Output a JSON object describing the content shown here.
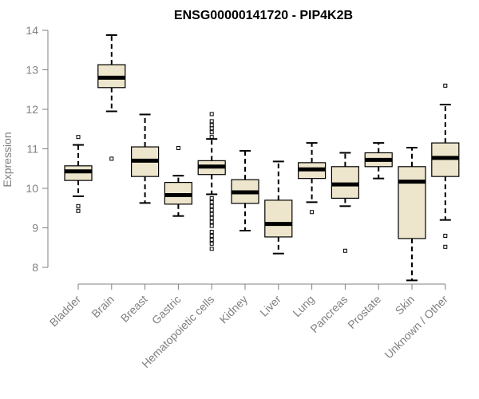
{
  "chart_data": {
    "type": "boxplot",
    "title": "ENSG00000141720 - PIP4K2B",
    "xlabel": "",
    "ylabel": "Expression",
    "ylim": [
      7.9,
      14.0
    ],
    "yticks": [
      8,
      9,
      10,
      11,
      12,
      13,
      14
    ],
    "grid": false,
    "box_fill": "#ede5cc",
    "categories": [
      "Bladder",
      "Brain",
      "Breast",
      "Gastric",
      "Hematopoietic cells",
      "Kidney",
      "Liver",
      "Lung",
      "Pancreas",
      "Prostate",
      "Skin",
      "Unknown / Other"
    ],
    "boxes": [
      {
        "q1": 10.2,
        "median": 10.43,
        "q3": 10.57,
        "whisker_low": 9.8,
        "whisker_high": 11.1,
        "outliers": [
          11.3,
          9.55,
          9.43
        ]
      },
      {
        "q1": 12.55,
        "median": 12.8,
        "q3": 13.13,
        "whisker_low": 11.95,
        "whisker_high": 13.88,
        "outliers": [
          10.75
        ]
      },
      {
        "q1": 10.3,
        "median": 10.7,
        "q3": 11.05,
        "whisker_low": 9.63,
        "whisker_high": 11.87,
        "outliers": []
      },
      {
        "q1": 9.6,
        "median": 9.83,
        "q3": 10.15,
        "whisker_low": 9.3,
        "whisker_high": 10.32,
        "outliers": [
          11.02
        ]
      },
      {
        "q1": 10.35,
        "median": 10.55,
        "q3": 10.7,
        "whisker_low": 9.85,
        "whisker_high": 11.25,
        "outliers": [
          11.3,
          11.42,
          11.52,
          11.6,
          11.7,
          11.88,
          9.75,
          9.65,
          9.55,
          9.45,
          9.35,
          9.25,
          9.15,
          9.05,
          8.9,
          8.8,
          8.7,
          8.6,
          8.47
        ]
      },
      {
        "q1": 9.62,
        "median": 9.9,
        "q3": 10.22,
        "whisker_low": 8.93,
        "whisker_high": 10.95,
        "outliers": []
      },
      {
        "q1": 8.77,
        "median": 9.1,
        "q3": 9.7,
        "whisker_low": 8.35,
        "whisker_high": 10.68,
        "outliers": []
      },
      {
        "q1": 10.25,
        "median": 10.48,
        "q3": 10.65,
        "whisker_low": 9.65,
        "whisker_high": 11.15,
        "outliers": [
          9.4
        ]
      },
      {
        "q1": 9.75,
        "median": 10.1,
        "q3": 10.55,
        "whisker_low": 9.55,
        "whisker_high": 10.9,
        "outliers": [
          8.42
        ]
      },
      {
        "q1": 10.55,
        "median": 10.72,
        "q3": 10.9,
        "whisker_low": 10.25,
        "whisker_high": 11.15,
        "outliers": []
      },
      {
        "q1": 8.73,
        "median": 10.17,
        "q3": 10.55,
        "whisker_low": 7.67,
        "whisker_high": 11.03,
        "outliers": []
      },
      {
        "q1": 10.3,
        "median": 10.77,
        "q3": 11.15,
        "whisker_low": 9.2,
        "whisker_high": 12.12,
        "outliers": [
          12.6,
          8.8,
          8.52
        ]
      }
    ]
  }
}
